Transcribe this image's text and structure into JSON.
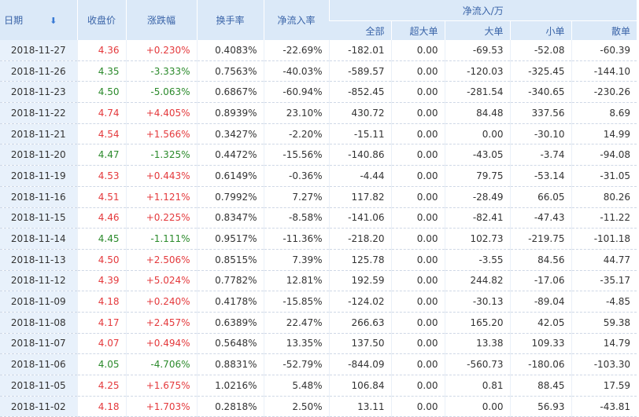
{
  "headers": {
    "date": "日期",
    "sort_icon": "⬇",
    "close": "收盘价",
    "change": "涨跌幅",
    "turnover": "换手率",
    "net_rate": "净流入率",
    "net_flow": "净流入/万",
    "all": "全部",
    "super_large": "超大单",
    "large": "大单",
    "small": "小单",
    "retail": "散单"
  },
  "colors": {
    "up": "#e4393c",
    "down": "#2b8a2b",
    "header_bg": "#dbe9f8",
    "header_text": "#3a64a8"
  },
  "rows": [
    {
      "date": "2018-11-27",
      "close": "4.36",
      "change": "+0.230%",
      "turnover": "0.4083%",
      "net_rate": "-22.69%",
      "all": "-182.01",
      "super": "0.00",
      "large": "-69.53",
      "small": "-52.08",
      "retail": "-60.39",
      "dir": "up"
    },
    {
      "date": "2018-11-26",
      "close": "4.35",
      "change": "-3.333%",
      "turnover": "0.7563%",
      "net_rate": "-40.03%",
      "all": "-589.57",
      "super": "0.00",
      "large": "-120.03",
      "small": "-325.45",
      "retail": "-144.10",
      "dir": "down"
    },
    {
      "date": "2018-11-23",
      "close": "4.50",
      "change": "-5.063%",
      "turnover": "0.6867%",
      "net_rate": "-60.94%",
      "all": "-852.45",
      "super": "0.00",
      "large": "-281.54",
      "small": "-340.65",
      "retail": "-230.26",
      "dir": "down"
    },
    {
      "date": "2018-11-22",
      "close": "4.74",
      "change": "+4.405%",
      "turnover": "0.8939%",
      "net_rate": "23.10%",
      "all": "430.72",
      "super": "0.00",
      "large": "84.48",
      "small": "337.56",
      "retail": "8.69",
      "dir": "up"
    },
    {
      "date": "2018-11-21",
      "close": "4.54",
      "change": "+1.566%",
      "turnover": "0.3427%",
      "net_rate": "-2.20%",
      "all": "-15.11",
      "super": "0.00",
      "large": "0.00",
      "small": "-30.10",
      "retail": "14.99",
      "dir": "up"
    },
    {
      "date": "2018-11-20",
      "close": "4.47",
      "change": "-1.325%",
      "turnover": "0.4472%",
      "net_rate": "-15.56%",
      "all": "-140.86",
      "super": "0.00",
      "large": "-43.05",
      "small": "-3.74",
      "retail": "-94.08",
      "dir": "down"
    },
    {
      "date": "2018-11-19",
      "close": "4.53",
      "change": "+0.443%",
      "turnover": "0.6149%",
      "net_rate": "-0.36%",
      "all": "-4.44",
      "super": "0.00",
      "large": "79.75",
      "small": "-53.14",
      "retail": "-31.05",
      "dir": "up"
    },
    {
      "date": "2018-11-16",
      "close": "4.51",
      "change": "+1.121%",
      "turnover": "0.7992%",
      "net_rate": "7.27%",
      "all": "117.82",
      "super": "0.00",
      "large": "-28.49",
      "small": "66.05",
      "retail": "80.26",
      "dir": "up"
    },
    {
      "date": "2018-11-15",
      "close": "4.46",
      "change": "+0.225%",
      "turnover": "0.8347%",
      "net_rate": "-8.58%",
      "all": "-141.06",
      "super": "0.00",
      "large": "-82.41",
      "small": "-47.43",
      "retail": "-11.22",
      "dir": "up"
    },
    {
      "date": "2018-11-14",
      "close": "4.45",
      "change": "-1.111%",
      "turnover": "0.9517%",
      "net_rate": "-11.36%",
      "all": "-218.20",
      "super": "0.00",
      "large": "102.73",
      "small": "-219.75",
      "retail": "-101.18",
      "dir": "down"
    },
    {
      "date": "2018-11-13",
      "close": "4.50",
      "change": "+2.506%",
      "turnover": "0.8515%",
      "net_rate": "7.39%",
      "all": "125.78",
      "super": "0.00",
      "large": "-3.55",
      "small": "84.56",
      "retail": "44.77",
      "dir": "up"
    },
    {
      "date": "2018-11-12",
      "close": "4.39",
      "change": "+5.024%",
      "turnover": "0.7782%",
      "net_rate": "12.81%",
      "all": "192.59",
      "super": "0.00",
      "large": "244.82",
      "small": "-17.06",
      "retail": "-35.17",
      "dir": "up"
    },
    {
      "date": "2018-11-09",
      "close": "4.18",
      "change": "+0.240%",
      "turnover": "0.4178%",
      "net_rate": "-15.85%",
      "all": "-124.02",
      "super": "0.00",
      "large": "-30.13",
      "small": "-89.04",
      "retail": "-4.85",
      "dir": "up"
    },
    {
      "date": "2018-11-08",
      "close": "4.17",
      "change": "+2.457%",
      "turnover": "0.6389%",
      "net_rate": "22.47%",
      "all": "266.63",
      "super": "0.00",
      "large": "165.20",
      "small": "42.05",
      "retail": "59.38",
      "dir": "up"
    },
    {
      "date": "2018-11-07",
      "close": "4.07",
      "change": "+0.494%",
      "turnover": "0.5648%",
      "net_rate": "13.35%",
      "all": "137.50",
      "super": "0.00",
      "large": "13.38",
      "small": "109.33",
      "retail": "14.79",
      "dir": "up"
    },
    {
      "date": "2018-11-06",
      "close": "4.05",
      "change": "-4.706%",
      "turnover": "0.8831%",
      "net_rate": "-52.79%",
      "all": "-844.09",
      "super": "0.00",
      "large": "-560.73",
      "small": "-180.06",
      "retail": "-103.30",
      "dir": "down"
    },
    {
      "date": "2018-11-05",
      "close": "4.25",
      "change": "+1.675%",
      "turnover": "1.0216%",
      "net_rate": "5.48%",
      "all": "106.84",
      "super": "0.00",
      "large": "0.81",
      "small": "88.45",
      "retail": "17.59",
      "dir": "up"
    },
    {
      "date": "2018-11-02",
      "close": "4.18",
      "change": "+1.703%",
      "turnover": "0.2818%",
      "net_rate": "2.50%",
      "all": "13.11",
      "super": "0.00",
      "large": "0.00",
      "small": "56.93",
      "retail": "-43.81",
      "dir": "up"
    }
  ]
}
